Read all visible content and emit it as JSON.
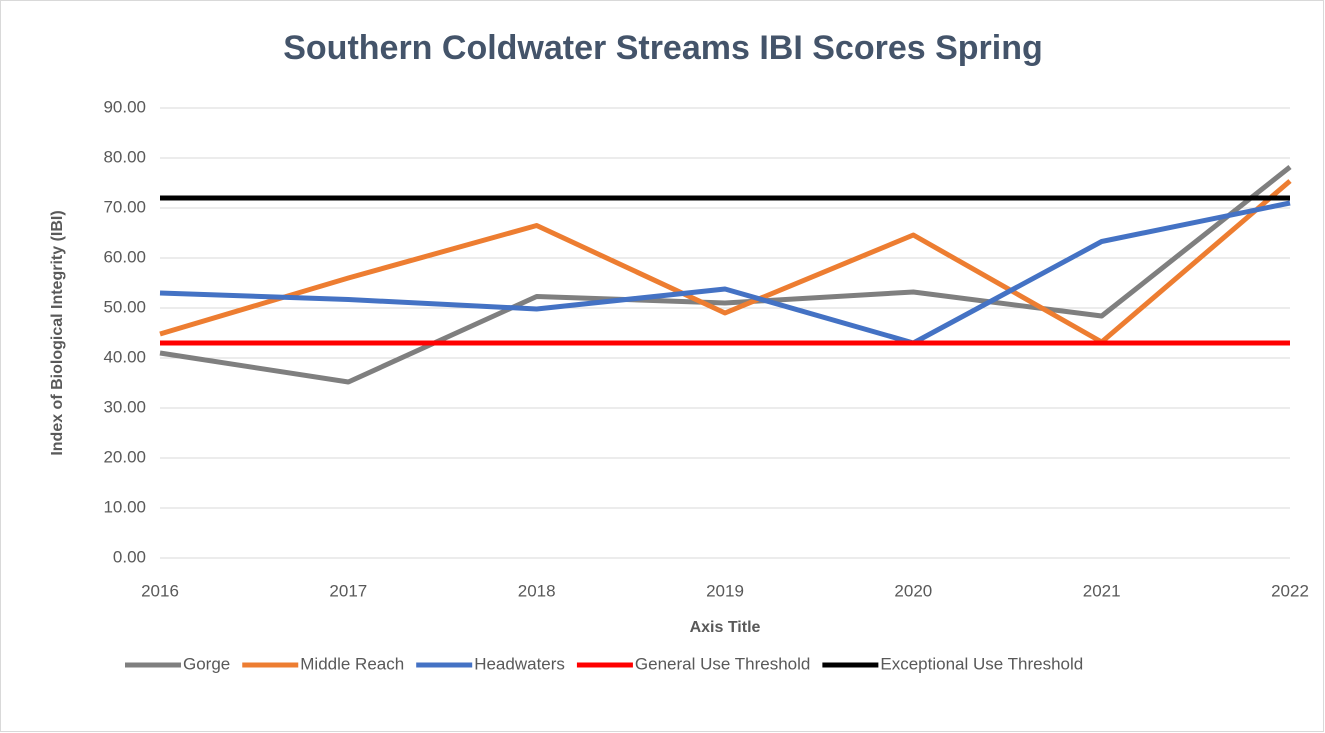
{
  "chart_data": {
    "type": "line",
    "title": "Southern Coldwater Streams IBI Scores Spring",
    "x_label": "Axis Title",
    "y_label": "Index of Biological Integrity (IBI)",
    "categories": [
      "2016",
      "2017",
      "2018",
      "2019",
      "2020",
      "2021",
      "2022"
    ],
    "series": [
      {
        "name": "Gorge",
        "color": "#7f7f7f",
        "values": [
          41.0,
          35.2,
          52.3,
          51.0,
          53.2,
          48.4,
          78.2
        ]
      },
      {
        "name": "Middle Reach",
        "color": "#ed7d31",
        "values": [
          44.8,
          56.0,
          66.5,
          49.0,
          64.6,
          43.2,
          75.4
        ]
      },
      {
        "name": "Headwaters",
        "color": "#4472c4",
        "values": [
          53.0,
          51.7,
          49.8,
          53.8,
          43.0,
          63.3,
          71.0
        ]
      },
      {
        "name": "General Use Threshold",
        "color": "#ff0000",
        "values": [
          43,
          43,
          43,
          43,
          43,
          43,
          43
        ]
      },
      {
        "name": "Exceptional Use Threshold",
        "color": "#000000",
        "values": [
          72,
          72,
          72,
          72,
          72,
          72,
          72
        ]
      }
    ],
    "ylim": [
      0,
      90
    ],
    "yticks": [
      {
        "value": 0,
        "label": "0.00"
      },
      {
        "value": 10,
        "label": "10.00"
      },
      {
        "value": 20,
        "label": "20.00"
      },
      {
        "value": 30,
        "label": "30.00"
      },
      {
        "value": 40,
        "label": "40.00"
      },
      {
        "value": 50,
        "label": "50.00"
      },
      {
        "value": 60,
        "label": "60.00"
      },
      {
        "value": 70,
        "label": "70.00"
      },
      {
        "value": 80,
        "label": "80.00"
      },
      {
        "value": 90,
        "label": "90.00"
      }
    ],
    "grid": true,
    "legend": "bottom"
  }
}
